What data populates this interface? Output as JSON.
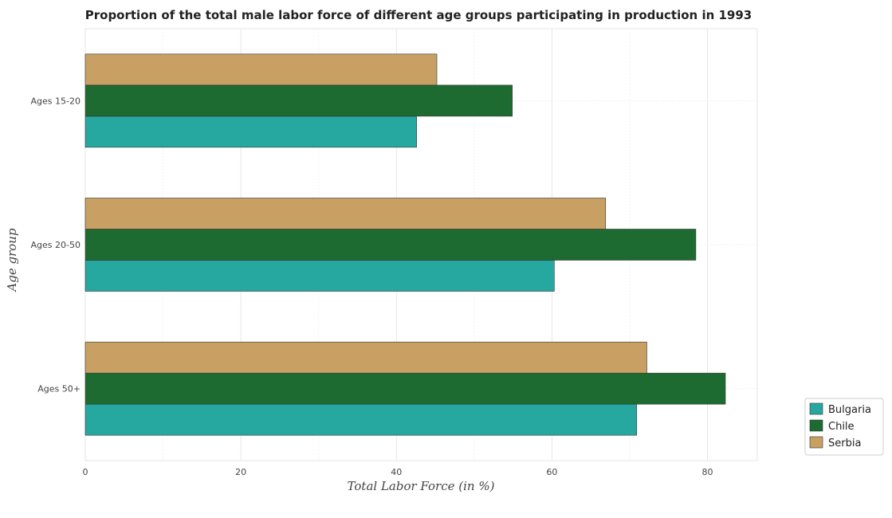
{
  "chart_data": {
    "type": "bar",
    "orientation": "horizontal",
    "title": "Proportion of the total male labor force of different age groups participating in production in 1993",
    "xlabel": "Total Labor Force (in %)",
    "ylabel": "Age group",
    "categories": [
      "Ages 15-20",
      "Ages 20-50",
      "Ages 50+"
    ],
    "series": [
      {
        "name": "Bulgaria",
        "color": "#26a8a0",
        "values": [
          42.6,
          60.3,
          70.9
        ]
      },
      {
        "name": "Chile",
        "color": "#1d6b31",
        "values": [
          54.9,
          78.5,
          82.3
        ]
      },
      {
        "name": "Serbia",
        "color": "#c8a063",
        "values": [
          45.2,
          66.9,
          72.2
        ]
      }
    ],
    "xticks": [
      0,
      20,
      40,
      60,
      80
    ],
    "xlim": [
      0,
      86.4
    ],
    "grid": true,
    "legend_position": "bottom-right"
  }
}
